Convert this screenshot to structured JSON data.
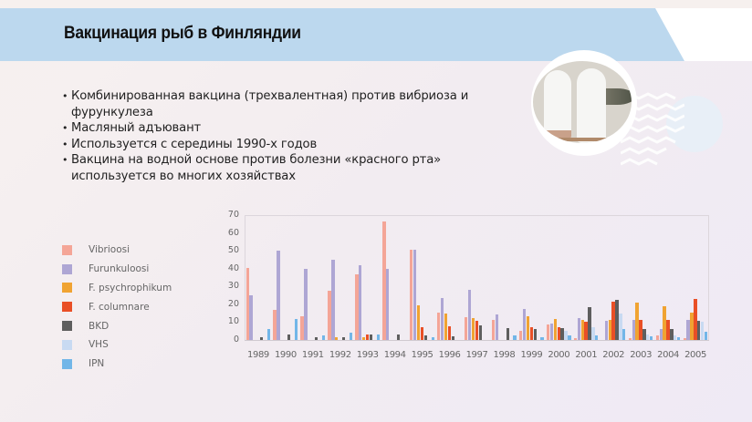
{
  "header": {
    "title": "Вакцинация рыб в Финляндии"
  },
  "photo": {
    "description": "vaccine-bottles-and-fish-photo"
  },
  "bullets": [
    "Комбинированная вакцина (трехвалентная) против вибриоза и фурункулеза",
    "Масляный адъювант",
    "Используется с середины 1990-х годов",
    "Вакцина на водной основе против болезни «красного рта» используется во многих хозяйствах"
  ],
  "colors": {
    "header_band": "#bcd8ee",
    "Vibrioosi": "#f4a597",
    "Furunkuloosi": "#aea6d4",
    "F. psychrophikum": "#f0a332",
    "F. columnare": "#e94f26",
    "BKD": "#5e5e5e",
    "VHS": "#c8daf2",
    "IPN": "#72b6e8"
  },
  "legend": [
    {
      "label": "Vibrioosi",
      "color": "#f4a597"
    },
    {
      "label": "Furunkuloosi",
      "color": "#aea6d4"
    },
    {
      "label": "F. psychrophikum",
      "color": "#f0a332"
    },
    {
      "label": "F. columnare",
      "color": "#e94f26"
    },
    {
      "label": "BKD",
      "color": "#5e5e5e"
    },
    {
      "label": "VHS",
      "color": "#c8daf2"
    },
    {
      "label": "IPN",
      "color": "#72b6e8"
    }
  ],
  "chart_data": {
    "type": "bar",
    "title": "",
    "xlabel": "",
    "ylabel": "",
    "ylim": [
      0,
      70
    ],
    "yticks": [
      0,
      10,
      20,
      30,
      40,
      50,
      60,
      70
    ],
    "grid": false,
    "legend_position": "left",
    "categories": [
      "1989",
      "1990",
      "1991",
      "1992",
      "1993",
      "1994",
      "1995",
      "1996",
      "1997",
      "1998",
      "1999",
      "2000",
      "2001",
      "2002",
      "2003",
      "2004",
      "2005"
    ],
    "series": [
      {
        "name": "Vibrioosi",
        "color": "#f4a597",
        "values": [
          40.5,
          17,
          13.5,
          27.5,
          37,
          66.5,
          50.5,
          15.5,
          13,
          11.5,
          5,
          8.5,
          1,
          0,
          1,
          2.5,
          1
        ]
      },
      {
        "name": "Furunkuloosi",
        "color": "#aea6d4",
        "values": [
          25,
          50,
          40,
          45,
          42,
          40,
          50.5,
          23.5,
          28,
          14.5,
          17.5,
          9,
          12.5,
          10.5,
          11.5,
          6,
          11.5
        ]
      },
      {
        "name": "F. psychrophikum",
        "color": "#f0a332",
        "values": [
          0,
          0,
          0,
          1.5,
          1.5,
          0,
          19.5,
          15,
          12.5,
          0,
          13.5,
          12,
          11,
          11,
          21,
          19,
          15.5
        ]
      },
      {
        "name": "F. columnare",
        "color": "#e94f26",
        "values": [
          0,
          0,
          0,
          0,
          3,
          0,
          7,
          7.5,
          10.5,
          0,
          7,
          7,
          10,
          21.5,
          11,
          11,
          23
        ]
      },
      {
        "name": "BKD",
        "color": "#5e5e5e",
        "values": [
          1.5,
          3,
          1.5,
          1.5,
          3,
          3,
          2.5,
          2,
          8,
          6.5,
          6,
          6.5,
          18.5,
          22.5,
          6,
          6,
          10.5
        ]
      },
      {
        "name": "VHS",
        "color": "#c8daf2",
        "values": [
          0,
          0,
          0,
          0,
          0,
          0,
          0,
          0,
          0,
          0,
          0,
          5,
          7,
          15,
          3,
          2.5,
          10
        ]
      },
      {
        "name": "IPN",
        "color": "#72b6e8",
        "values": [
          6,
          12,
          2.5,
          4,
          3,
          0,
          1.5,
          0,
          0,
          2.5,
          1.5,
          2.5,
          2.5,
          6,
          2,
          1.5,
          4.5
        ]
      }
    ]
  }
}
